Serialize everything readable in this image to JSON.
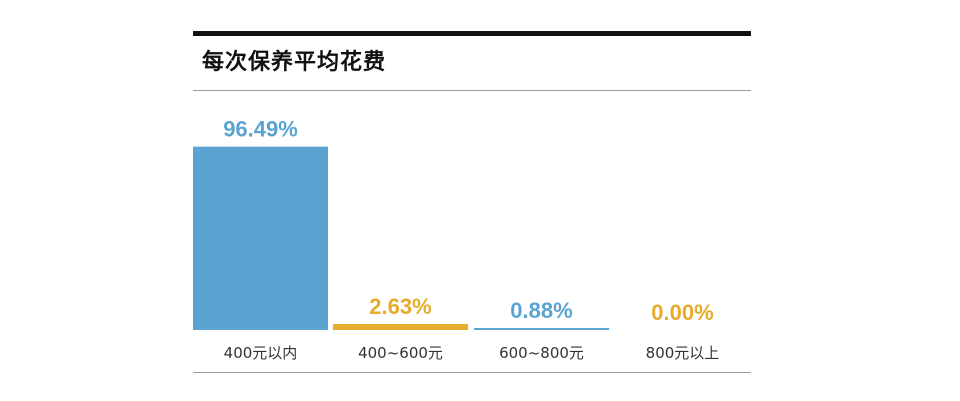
{
  "chart_data": {
    "type": "bar",
    "title": "每次保养平均花费",
    "categories": [
      "400元以内",
      "400~600元",
      "600~800元",
      "800元以上"
    ],
    "values": [
      96.49,
      2.63,
      0.88,
      0.0
    ],
    "value_labels": [
      "96.49%",
      "2.63%",
      "0.88%",
      "0.00%"
    ],
    "unit": "%",
    "ylim": [
      0,
      100
    ],
    "grid": false,
    "legend": "none",
    "colors": [
      "#5ba3d0",
      "#e6ac2c",
      "#5ba3d0",
      "#e6ac2c"
    ]
  }
}
